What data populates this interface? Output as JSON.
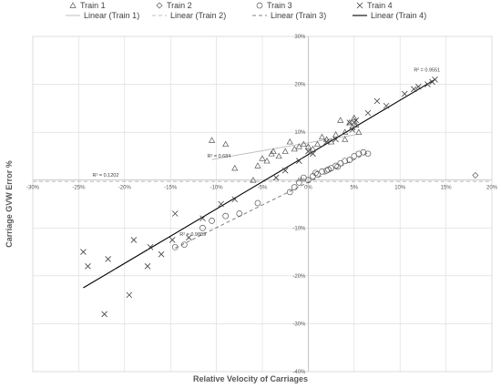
{
  "chart_data": {
    "type": "scatter",
    "title": "",
    "xlabel": "Relative Velocity of Carriages",
    "ylabel": "Carriage  GVW Error %",
    "xlim": [
      -0.3,
      0.2
    ],
    "ylim": [
      -0.4,
      0.3
    ],
    "x_ticks": [
      "-30%",
      "-25%",
      "-20%",
      "-15%",
      "-10%",
      "-5%",
      "0%",
      "5%",
      "10%",
      "15%",
      "20%"
    ],
    "y_ticks": [
      "-40%",
      "-30%",
      "-20%",
      "-10%",
      "0%",
      "10%",
      "20%",
      "30%"
    ],
    "grid": "vertical-and-horizontal",
    "legend_position": "top",
    "legend": [
      {
        "key": "train1",
        "label": "Train 1",
        "marker": "triangle"
      },
      {
        "key": "train2",
        "label": "Train 2",
        "marker": "diamond"
      },
      {
        "key": "train3",
        "label": "Train 3",
        "marker": "circle"
      },
      {
        "key": "train4",
        "label": "Train 4",
        "marker": "x"
      },
      {
        "key": "fit1",
        "label": "Linear (Train 1)",
        "line": "solid-light"
      },
      {
        "key": "fit2",
        "label": "Linear (Train 2)",
        "line": "dash-light"
      },
      {
        "key": "fit3",
        "label": "Linear (Train 3)",
        "line": "dash-dark"
      },
      {
        "key": "fit4",
        "label": "Linear (Train 4)",
        "line": "solid-dark"
      }
    ],
    "series": [
      {
        "key": "train1",
        "name": "Train 1",
        "marker": "triangle",
        "points": [
          [
            -0.105,
            0.083
          ],
          [
            -0.09,
            0.075
          ],
          [
            -0.08,
            0.025
          ],
          [
            -0.06,
            0.0
          ],
          [
            -0.055,
            0.03
          ],
          [
            -0.05,
            0.045
          ],
          [
            -0.045,
            0.04
          ],
          [
            -0.04,
            0.055
          ],
          [
            -0.038,
            0.06
          ],
          [
            -0.032,
            0.05
          ],
          [
            -0.025,
            0.06
          ],
          [
            -0.02,
            0.08
          ],
          [
            -0.015,
            0.065
          ],
          [
            -0.01,
            0.07
          ],
          [
            -0.005,
            0.075
          ],
          [
            0.0,
            0.07
          ],
          [
            0.005,
            0.065
          ],
          [
            0.01,
            0.075
          ],
          [
            0.015,
            0.09
          ],
          [
            0.02,
            0.085
          ],
          [
            0.025,
            0.08
          ],
          [
            0.03,
            0.095
          ],
          [
            0.035,
            0.125
          ],
          [
            0.04,
            0.1
          ],
          [
            0.045,
            0.12
          ],
          [
            0.048,
            0.11
          ],
          [
            0.05,
            0.13
          ],
          [
            0.052,
            0.115
          ],
          [
            0.055,
            0.1
          ],
          [
            0.04,
            0.085
          ]
        ]
      },
      {
        "key": "train2",
        "name": "Train 2",
        "marker": "diamond",
        "points": [
          [
            0.182,
            0.01
          ]
        ]
      },
      {
        "key": "train3",
        "name": "Train 3",
        "marker": "circle",
        "points": [
          [
            -0.145,
            -0.14
          ],
          [
            -0.135,
            -0.135
          ],
          [
            -0.115,
            -0.1
          ],
          [
            -0.105,
            -0.085
          ],
          [
            -0.09,
            -0.075
          ],
          [
            -0.075,
            -0.07
          ],
          [
            -0.055,
            -0.048
          ],
          [
            -0.02,
            -0.025
          ],
          [
            -0.015,
            -0.015
          ],
          [
            -0.01,
            -0.005
          ],
          [
            -0.005,
            0.005
          ],
          [
            0.0,
            0.0
          ],
          [
            0.005,
            0.008
          ],
          [
            0.01,
            0.012
          ],
          [
            0.015,
            0.018
          ],
          [
            0.02,
            0.02
          ],
          [
            0.025,
            0.025
          ],
          [
            0.03,
            0.03
          ],
          [
            0.035,
            0.035
          ],
          [
            0.04,
            0.04
          ],
          [
            0.045,
            0.042
          ],
          [
            0.05,
            0.05
          ],
          [
            0.055,
            0.055
          ],
          [
            0.06,
            0.058
          ],
          [
            0.065,
            0.055
          ],
          [
            0.008,
            0.015
          ],
          [
            0.022,
            0.022
          ],
          [
            0.032,
            0.028
          ]
        ]
      },
      {
        "key": "train4",
        "name": "Train 4",
        "marker": "x",
        "points": [
          [
            -0.245,
            -0.15
          ],
          [
            -0.24,
            -0.18
          ],
          [
            -0.222,
            -0.28
          ],
          [
            -0.218,
            -0.165
          ],
          [
            -0.195,
            -0.24
          ],
          [
            -0.19,
            -0.125
          ],
          [
            -0.175,
            -0.18
          ],
          [
            -0.172,
            -0.14
          ],
          [
            -0.16,
            -0.155
          ],
          [
            -0.148,
            -0.125
          ],
          [
            -0.145,
            -0.07
          ],
          [
            -0.13,
            -0.12
          ],
          [
            -0.115,
            -0.08
          ],
          [
            -0.095,
            -0.05
          ],
          [
            -0.08,
            -0.04
          ],
          [
            -0.035,
            0.005
          ],
          [
            -0.025,
            0.02
          ],
          [
            -0.01,
            0.04
          ],
          [
            0.0,
            0.06
          ],
          [
            0.005,
            0.055
          ],
          [
            0.02,
            0.08
          ],
          [
            0.03,
            0.085
          ],
          [
            0.045,
            0.12
          ],
          [
            0.048,
            0.105
          ],
          [
            0.05,
            0.12
          ],
          [
            0.052,
            0.125
          ],
          [
            0.065,
            0.14
          ],
          [
            0.075,
            0.165
          ],
          [
            0.085,
            0.155
          ],
          [
            0.105,
            0.18
          ],
          [
            0.115,
            0.19
          ],
          [
            0.12,
            0.195
          ],
          [
            0.13,
            0.2
          ],
          [
            0.135,
            0.205
          ],
          [
            0.138,
            0.21
          ]
        ]
      }
    ],
    "trendlines": [
      {
        "key": "fit1",
        "name": "Linear (Train 1)",
        "x": [
          -0.105,
          0.055
        ],
        "y": [
          0.043,
          0.096
        ],
        "r2": "R² = 0.684",
        "r2_at": [
          -0.11,
          0.047
        ],
        "style": "solid-light"
      },
      {
        "key": "fit2",
        "name": "Linear (Train 2)",
        "x": [
          -0.3,
          0.2
        ],
        "y": [
          -0.003,
          -0.003
        ],
        "r2": "R² = 0.1202",
        "r2_at": [
          -0.235,
          0.007
        ],
        "style": "dash-light"
      },
      {
        "key": "fit3",
        "name": "Linear (Train 3)",
        "x": [
          -0.145,
          0.065
        ],
        "y": [
          -0.142,
          0.057
        ],
        "r2": "R² = 0.9889",
        "r2_at": [
          -0.14,
          -0.117
        ],
        "style": "dash-dark"
      },
      {
        "key": "fit4",
        "name": "Linear (Train 4)",
        "x": [
          -0.245,
          0.138
        ],
        "y": [
          -0.225,
          0.21
        ],
        "r2": "R² = 0.9551",
        "r2_at": [
          0.115,
          0.227
        ],
        "style": "solid-dark"
      }
    ],
    "colors": {
      "marker": "#595959",
      "grid": "#d9d9d9",
      "axis": "#bfbfbf",
      "text": "#595959",
      "fit_light": "#bfbfbf",
      "fit_dark": "#000000"
    }
  }
}
